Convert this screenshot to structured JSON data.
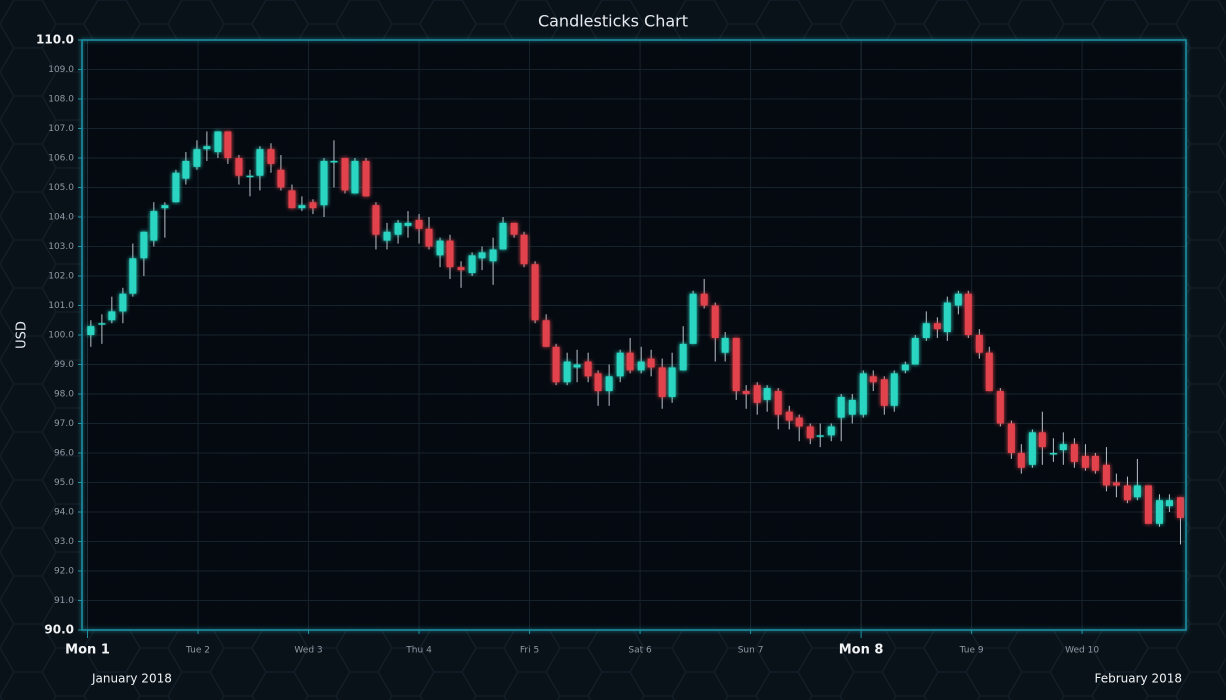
{
  "chart_data": {
    "type": "candlestick",
    "title": "Candlesticks Chart",
    "ylabel": "USD",
    "period_labels": [
      "January 2018",
      "February 2018"
    ],
    "up_color": "#2ad6c2",
    "down_color": "#e2434b",
    "grid": true,
    "xlim": [
      -0.05,
      9.94
    ],
    "ylim": [
      90,
      110
    ],
    "xticks": [
      {
        "value": 0,
        "label": "Mon 1"
      },
      {
        "value": 1,
        "label": "Tue 2"
      },
      {
        "value": 2,
        "label": "Wed 3"
      },
      {
        "value": 3,
        "label": "Thu 4"
      },
      {
        "value": 4,
        "label": "Fri 5"
      },
      {
        "value": 5,
        "label": "Sat 6"
      },
      {
        "value": 6,
        "label": "Sun 7"
      },
      {
        "value": 7,
        "label": "Mon 8"
      },
      {
        "value": 8,
        "label": "Tue 9"
      },
      {
        "value": 9,
        "label": "Wed 10"
      }
    ],
    "yticks": [
      {
        "value": 90,
        "label": "90.0"
      },
      {
        "value": 91,
        "label": "91.0"
      },
      {
        "value": 92,
        "label": "92.0"
      },
      {
        "value": 93,
        "label": "93.0"
      },
      {
        "value": 94,
        "label": "94.0"
      },
      {
        "value": 95,
        "label": "95.0"
      },
      {
        "value": 96,
        "label": "96.0"
      },
      {
        "value": 97,
        "label": "97.0"
      },
      {
        "value": 98,
        "label": "98.0"
      },
      {
        "value": 99,
        "label": "99.0"
      },
      {
        "value": 100,
        "label": "100.0"
      },
      {
        "value": 101,
        "label": "101.0"
      },
      {
        "value": 102,
        "label": "102.0"
      },
      {
        "value": 103,
        "label": "103.0"
      },
      {
        "value": 104,
        "label": "104.0"
      },
      {
        "value": 105,
        "label": "105.0"
      },
      {
        "value": 106,
        "label": "106.0"
      },
      {
        "value": 107,
        "label": "107.0"
      },
      {
        "value": 108,
        "label": "108.0"
      },
      {
        "value": 109,
        "label": "109.0"
      },
      {
        "value": 110,
        "label": "110.0"
      }
    ],
    "x": [
      0.03,
      0.13,
      0.22,
      0.32,
      0.41,
      0.51,
      0.6,
      0.7,
      0.8,
      0.89,
      0.99,
      1.08,
      1.18,
      1.27,
      1.37,
      1.47,
      1.56,
      1.66,
      1.75,
      1.85,
      1.94,
      2.04,
      2.14,
      2.23,
      2.33,
      2.42,
      2.52,
      2.61,
      2.71,
      2.81,
      2.9,
      3.0,
      3.09,
      3.19,
      3.28,
      3.38,
      3.48,
      3.57,
      3.67,
      3.76,
      3.86,
      3.95,
      4.05,
      4.15,
      4.24,
      4.34,
      4.43,
      4.53,
      4.62,
      4.72,
      4.82,
      4.91,
      5.01,
      5.1,
      5.2,
      5.29,
      5.39,
      5.48,
      5.58,
      5.68,
      5.77,
      5.87,
      5.96,
      6.06,
      6.15,
      6.25,
      6.35,
      6.44,
      6.54,
      6.63,
      6.73,
      6.82,
      6.92,
      7.02,
      7.11,
      7.21,
      7.3,
      7.4,
      7.49,
      7.59,
      7.69,
      7.78,
      7.88,
      7.97,
      8.07,
      8.16,
      8.26,
      8.36,
      8.45,
      8.55,
      8.64,
      8.74,
      8.83,
      8.93,
      9.03,
      9.12,
      9.22,
      9.31,
      9.41,
      9.5,
      9.6,
      9.7,
      9.79,
      9.89
    ],
    "open": [
      100.0,
      100.4,
      100.5,
      100.8,
      101.4,
      102.6,
      103.2,
      104.3,
      104.5,
      105.3,
      105.7,
      106.3,
      106.2,
      106.9,
      106.0,
      105.4,
      105.4,
      106.3,
      105.6,
      104.9,
      104.3,
      104.5,
      104.4,
      105.9,
      106.0,
      104.8,
      105.9,
      104.4,
      103.2,
      103.4,
      103.7,
      103.9,
      103.6,
      102.7,
      103.2,
      102.3,
      102.1,
      102.6,
      102.5,
      102.9,
      103.8,
      103.4,
      102.4,
      100.5,
      99.6,
      98.4,
      98.9,
      99.1,
      98.7,
      98.1,
      98.6,
      99.4,
      98.8,
      99.2,
      98.9,
      97.9,
      98.8,
      99.7,
      101.4,
      101.0,
      99.4,
      99.9,
      98.1,
      98.3,
      97.8,
      98.1,
      97.4,
      97.2,
      96.9,
      96.6,
      96.6,
      97.2,
      97.3,
      97.3,
      98.6,
      98.5,
      97.6,
      98.8,
      99.0,
      99.9,
      100.4,
      100.1,
      101.0,
      101.4,
      100.0,
      99.4,
      98.1,
      97.0,
      96.0,
      95.6,
      96.7,
      96.0,
      96.1,
      96.3,
      95.9,
      95.9,
      95.6,
      95.0,
      94.9,
      94.5,
      94.9,
      93.6,
      94.2,
      94.5
    ],
    "high": [
      100.5,
      100.7,
      101.3,
      101.6,
      103.1,
      103.5,
      104.5,
      104.5,
      105.6,
      106.2,
      106.6,
      106.9,
      106.9,
      106.9,
      106.1,
      105.6,
      106.4,
      106.5,
      106.1,
      105.1,
      104.7,
      104.6,
      106.0,
      106.6,
      106.0,
      106.0,
      106.0,
      104.5,
      103.8,
      103.9,
      104.2,
      104.1,
      104.0,
      103.3,
      103.4,
      102.5,
      102.8,
      103.0,
      103.3,
      104.0,
      103.8,
      103.5,
      102.5,
      100.7,
      99.7,
      99.4,
      99.5,
      99.4,
      98.8,
      99.0,
      99.5,
      99.9,
      99.6,
      99.5,
      99.2,
      99.4,
      100.3,
      101.5,
      101.9,
      101.1,
      100.1,
      99.9,
      98.3,
      98.4,
      98.3,
      98.2,
      97.6,
      97.3,
      97.0,
      97.0,
      97.0,
      98.0,
      98.0,
      98.8,
      98.8,
      98.6,
      98.8,
      99.1,
      100.0,
      100.8,
      100.6,
      101.3,
      101.5,
      101.5,
      100.2,
      99.6,
      98.2,
      97.1,
      96.3,
      96.8,
      97.4,
      96.5,
      96.7,
      96.5,
      96.3,
      96.0,
      96.2,
      95.3,
      95.2,
      95.8,
      94.9,
      94.6,
      94.6,
      94.5
    ],
    "low": [
      99.6,
      99.7,
      100.4,
      100.4,
      101.3,
      102.0,
      103.0,
      103.3,
      104.5,
      105.1,
      105.6,
      105.9,
      106.0,
      105.8,
      105.1,
      104.7,
      104.9,
      105.5,
      104.9,
      104.3,
      104.2,
      104.1,
      104.0,
      105.0,
      104.8,
      104.8,
      104.7,
      102.9,
      102.9,
      103.1,
      103.3,
      103.1,
      102.9,
      102.3,
      101.9,
      101.6,
      102.0,
      102.2,
      101.7,
      102.9,
      103.3,
      102.3,
      100.4,
      99.6,
      98.3,
      98.3,
      98.4,
      98.4,
      97.6,
      97.6,
      98.4,
      98.7,
      98.7,
      98.6,
      97.5,
      97.7,
      98.8,
      99.7,
      100.9,
      99.1,
      99.1,
      97.8,
      97.5,
      97.3,
      97.4,
      96.8,
      96.8,
      96.4,
      96.3,
      96.2,
      96.4,
      96.4,
      97.0,
      97.2,
      98.1,
      97.3,
      97.4,
      98.7,
      99.0,
      99.8,
      99.9,
      99.8,
      100.7,
      99.9,
      99.2,
      98.1,
      96.9,
      95.8,
      95.3,
      95.5,
      95.6,
      95.7,
      95.6,
      95.5,
      95.4,
      95.3,
      94.7,
      94.5,
      94.3,
      94.4,
      93.6,
      93.5,
      94.0,
      92.9
    ],
    "close": [
      100.3,
      100.4,
      100.8,
      101.4,
      102.6,
      103.5,
      104.2,
      104.4,
      105.5,
      105.9,
      106.3,
      106.4,
      106.9,
      106.0,
      105.4,
      105.4,
      106.3,
      105.8,
      105.0,
      104.3,
      104.4,
      104.3,
      105.9,
      105.9,
      104.9,
      105.9,
      104.7,
      103.4,
      103.5,
      103.8,
      103.8,
      103.6,
      103.0,
      103.2,
      102.3,
      102.2,
      102.7,
      102.8,
      102.9,
      103.8,
      103.4,
      102.4,
      100.5,
      99.6,
      98.4,
      99.1,
      99.0,
      98.6,
      98.1,
      98.6,
      99.4,
      98.8,
      99.1,
      98.9,
      97.9,
      98.9,
      99.7,
      101.4,
      101.0,
      99.9,
      99.9,
      98.1,
      98.0,
      97.7,
      98.2,
      97.3,
      97.1,
      96.9,
      96.5,
      96.6,
      96.9,
      97.9,
      97.8,
      98.7,
      98.4,
      97.6,
      98.7,
      99.0,
      99.9,
      100.4,
      100.2,
      101.1,
      101.4,
      100.0,
      99.4,
      98.1,
      97.0,
      96.0,
      95.5,
      96.7,
      96.2,
      96.0,
      96.3,
      95.7,
      95.5,
      95.4,
      94.9,
      94.9,
      94.4,
      94.9,
      93.6,
      94.4,
      94.4,
      93.8
    ]
  }
}
